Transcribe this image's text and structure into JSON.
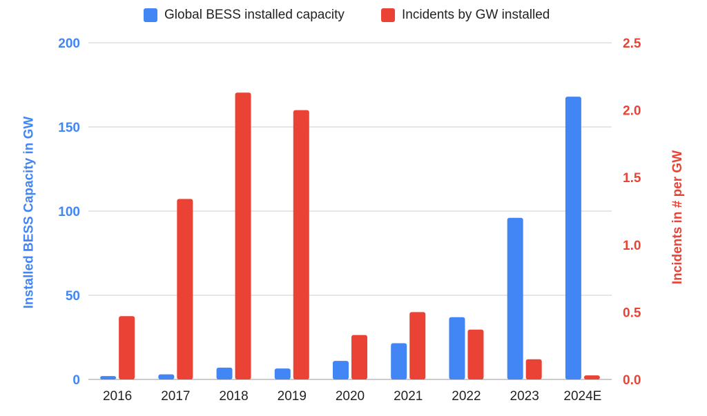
{
  "colors": {
    "capacity": "#4285f4",
    "incidents": "#ea4335",
    "grid": "#cccccc",
    "axis_text": "#222222"
  },
  "legend": {
    "capacity": "Global BESS installed capacity",
    "incidents": "Incidents by GW installed"
  },
  "axes": {
    "left_label": "Installed BESS Capacity in GW",
    "right_label": "Incidents in # per GW"
  },
  "chart_data": {
    "type": "bar",
    "title": "",
    "categories": [
      "2016",
      "2017",
      "2018",
      "2019",
      "2020",
      "2021",
      "2022",
      "2023",
      "2024E"
    ],
    "series": [
      {
        "name": "Global BESS installed capacity",
        "axis": "left",
        "values": [
          2,
          3,
          7,
          6.5,
          11,
          21.5,
          37,
          96,
          168
        ]
      },
      {
        "name": "Incidents by GW installed",
        "axis": "right",
        "values": [
          0.47,
          1.34,
          2.13,
          2.0,
          0.33,
          0.5,
          0.37,
          0.15,
          0.03
        ]
      }
    ],
    "y_left": {
      "label": "Installed BESS Capacity in GW",
      "range": [
        0,
        200
      ],
      "ticks": [
        "0",
        "50",
        "100",
        "150",
        "200"
      ]
    },
    "y_right": {
      "label": "Incidents in # per GW",
      "range": [
        0,
        2.5
      ],
      "ticks": [
        "0.0",
        "0.5",
        "1.0",
        "1.5",
        "2.0",
        "2.5"
      ]
    },
    "grid": true,
    "legend_position": "top"
  }
}
